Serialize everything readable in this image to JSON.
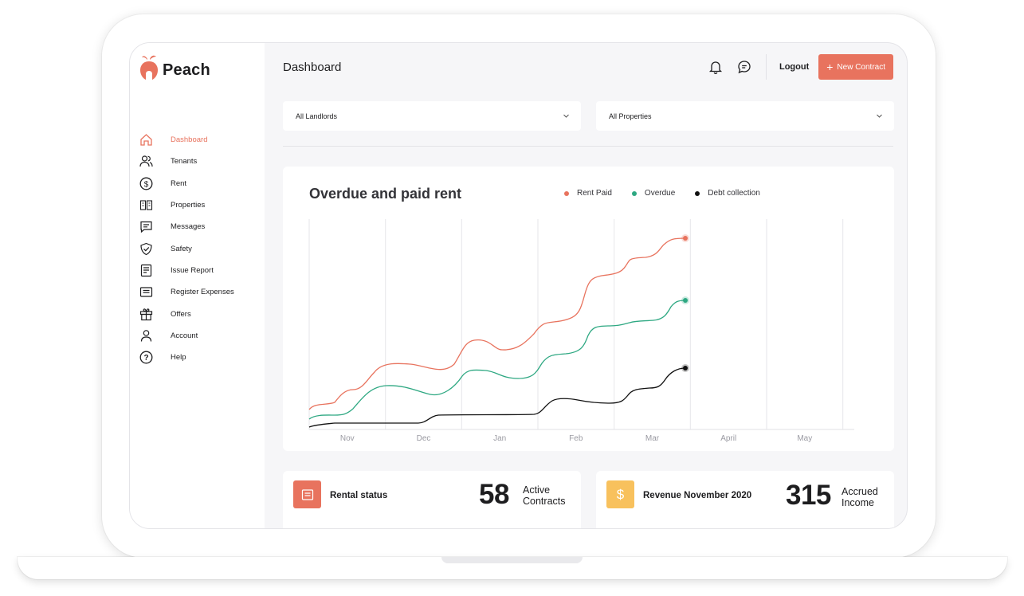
{
  "app": {
    "name": "Peach",
    "brand_color": "#e8735e"
  },
  "sidebar": {
    "items": [
      {
        "label": "Dashboard",
        "icon": "home-icon",
        "active": true
      },
      {
        "label": "Tenants",
        "icon": "users-icon"
      },
      {
        "label": "Rent",
        "icon": "dollar-icon"
      },
      {
        "label": "Properties",
        "icon": "building-icon"
      },
      {
        "label": "Messages",
        "icon": "message-icon"
      },
      {
        "label": "Safety",
        "icon": "shield-icon"
      },
      {
        "label": "Issue Report",
        "icon": "document-icon"
      },
      {
        "label": "Register Expenses",
        "icon": "receipt-icon"
      },
      {
        "label": "Offers",
        "icon": "gift-icon"
      },
      {
        "label": "Account",
        "icon": "user-icon"
      },
      {
        "label": "Help",
        "icon": "help-icon"
      }
    ]
  },
  "header": {
    "title": "Dashboard",
    "logout_label": "Logout",
    "new_contract_label": "New Contract",
    "new_contract_plus": "+"
  },
  "filters": {
    "landlords": "All Landlords",
    "properties": "All Properties"
  },
  "chart_data": {
    "type": "line",
    "title": "Overdue and paid rent",
    "categories": [
      "Nov",
      "Dec",
      "Jan",
      "Feb",
      "Mar",
      "April",
      "May"
    ],
    "series": [
      {
        "name": "Rent Paid",
        "color": "#e8735e"
      },
      {
        "name": "Overdue",
        "color": "#2ea882"
      },
      {
        "name": "Debt collection",
        "color": "#111111"
      }
    ],
    "grid": "vertical"
  },
  "stats": {
    "rental": {
      "title": "Rental status",
      "value": "58",
      "label_line1": "Active",
      "label_line2": "Contracts",
      "color": "#e8735e"
    },
    "revenue": {
      "title": "Revenue November 2020",
      "value": "315",
      "label_line1": "Accrued",
      "label_line2": "Income",
      "color": "#f8c15d",
      "icon_glyph": "$"
    }
  }
}
